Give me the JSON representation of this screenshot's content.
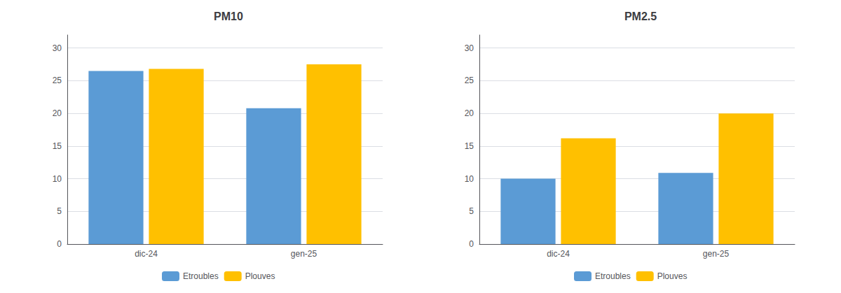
{
  "chart_data": [
    {
      "type": "bar",
      "title": "PM10",
      "categories": [
        "dic-24",
        "gen-25"
      ],
      "series": [
        {
          "name": "Etroubles",
          "color": "#5b9bd5",
          "values": [
            26.5,
            20.8
          ]
        },
        {
          "name": "Plouves",
          "color": "#ffc000",
          "values": [
            26.8,
            27.5
          ]
        }
      ],
      "ylim": [
        0,
        32
      ],
      "yticks": [
        0,
        5,
        10,
        15,
        20,
        25,
        30
      ],
      "grid": true,
      "legend": "bottom"
    },
    {
      "type": "bar",
      "title": "PM2.5",
      "categories": [
        "dic-24",
        "gen-25"
      ],
      "series": [
        {
          "name": "Etroubles",
          "color": "#5b9bd5",
          "values": [
            10.0,
            10.9
          ]
        },
        {
          "name": "Plouves",
          "color": "#ffc000",
          "values": [
            16.2,
            20.0
          ]
        }
      ],
      "ylim": [
        0,
        32
      ],
      "yticks": [
        0,
        5,
        10,
        15,
        20,
        25,
        30
      ],
      "grid": true,
      "legend": "bottom"
    }
  ]
}
